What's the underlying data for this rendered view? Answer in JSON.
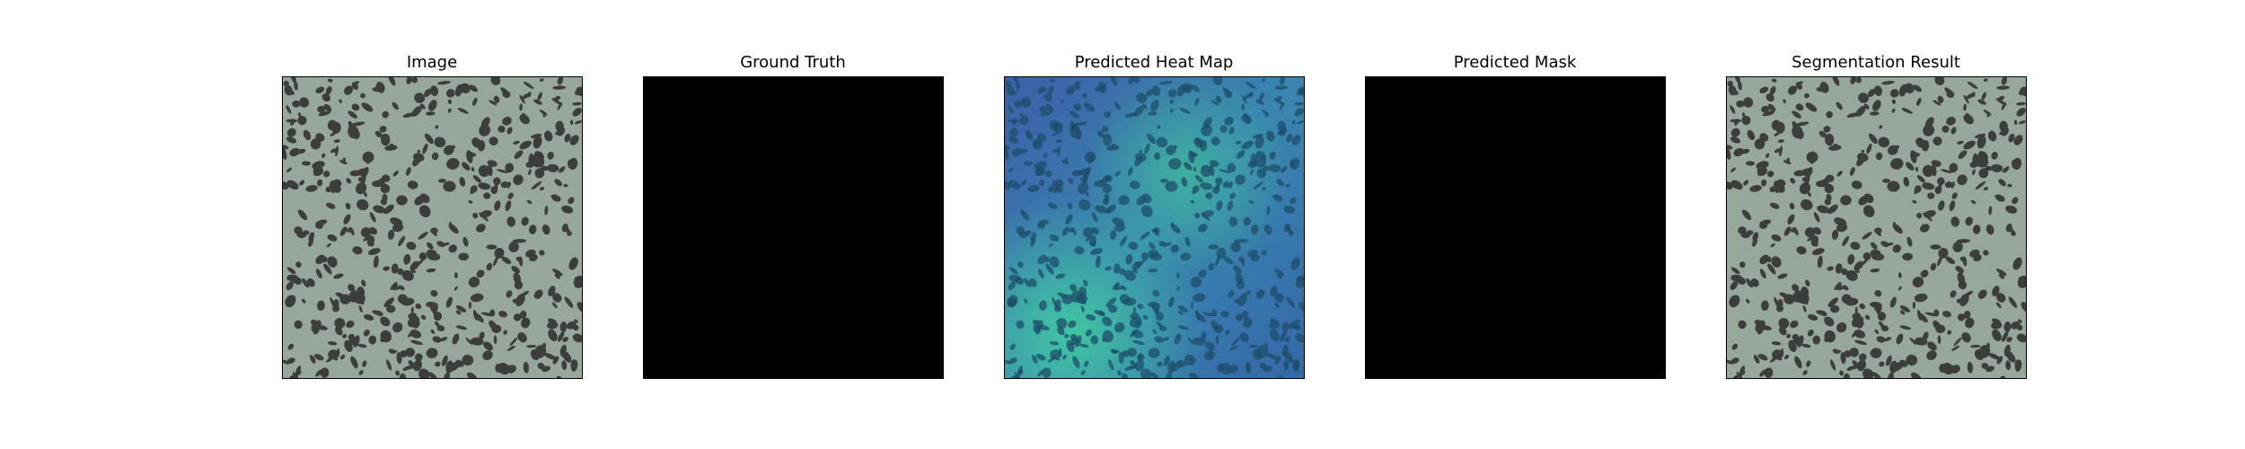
{
  "panels": [
    {
      "title": "Image",
      "content": "grayscale texture of dark spots on light grey-green background"
    },
    {
      "title": "Ground Truth",
      "content": "all black mask"
    },
    {
      "title": "Predicted Heat Map",
      "content": "blue-cyan heat map overlaid on texture"
    },
    {
      "title": "Predicted Mask",
      "content": "all black mask"
    },
    {
      "title": "Segmentation Result",
      "content": "texture image with no highlighted region"
    }
  ],
  "colors": {
    "texture_background": "#97a79b",
    "texture_spot": "#3b3e3a",
    "mask": "#000000",
    "heat_low": "#3b5fa8",
    "heat_high": "#41c9a2"
  }
}
